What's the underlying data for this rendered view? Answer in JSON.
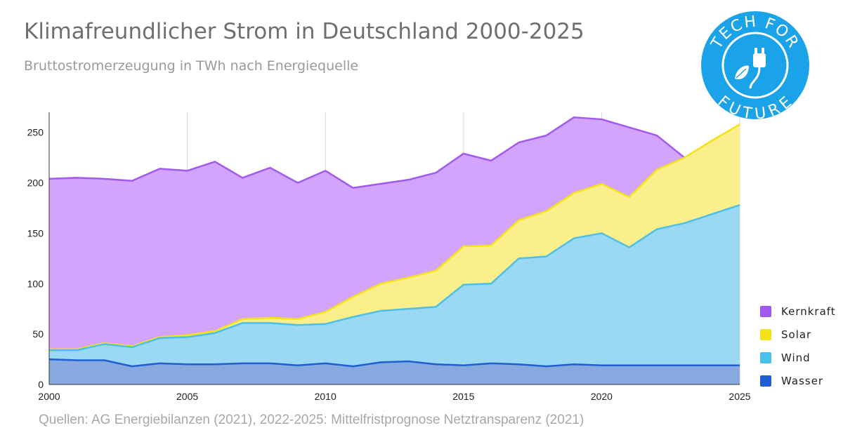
{
  "title": "Klimafreundlicher Strom in Deutschland 2000-2025",
  "subtitle": "Bruttostromerzeugung in TWh nach Energiequelle",
  "source": "Quellen: AG Energiebilanzen (2021), 2022-2025: Mittelfristprognose Netztransparenz (2021)",
  "logo": {
    "icon": "plug-with-leaf-icon",
    "text_top": "TECH FOR",
    "text_bottom": "FUTURE",
    "color": "#1aa3e8"
  },
  "colors": {
    "Kernkraft": {
      "fill": "#d2a4fc",
      "line": "#a259f0"
    },
    "Solar": {
      "fill": "#fbef8c",
      "line": "#f5e11a"
    },
    "Wind": {
      "fill": "#9ad8f4",
      "line": "#4cc0e8"
    },
    "Wasser": {
      "fill": "#88a8e0",
      "line": "#1f5fd0"
    }
  },
  "chart_data": {
    "type": "area",
    "stacked": true,
    "x": [
      2000,
      2001,
      2002,
      2003,
      2004,
      2005,
      2006,
      2007,
      2008,
      2009,
      2010,
      2011,
      2012,
      2013,
      2014,
      2015,
      2016,
      2017,
      2018,
      2019,
      2020,
      2021,
      2022,
      2023,
      2024,
      2025
    ],
    "series": [
      {
        "name": "Wasser",
        "cumulative": [
          25,
          24,
          24,
          18,
          21,
          20,
          20,
          21,
          21,
          19,
          21,
          18,
          22,
          23,
          20,
          19,
          21,
          20,
          18,
          20,
          19,
          19,
          19,
          19,
          19,
          19
        ]
      },
      {
        "name": "Wind",
        "cumulative": [
          34,
          34,
          40,
          37,
          46,
          47,
          51,
          61,
          61,
          59,
          60,
          67,
          73,
          75,
          77,
          99,
          100,
          125,
          127,
          145,
          150,
          136,
          154,
          160,
          169,
          178
        ]
      },
      {
        "name": "Solar",
        "cumulative": [
          35,
          35,
          41,
          38,
          47,
          49,
          53,
          65,
          66,
          65,
          72,
          87,
          100,
          106,
          113,
          137,
          138,
          163,
          172,
          190,
          199,
          186,
          213,
          225,
          242,
          258
        ]
      },
      {
        "name": "Kernkraft",
        "cumulative": [
          204,
          205,
          204,
          202,
          214,
          212,
          221,
          205,
          215,
          200,
          212,
          195,
          199,
          203,
          210,
          229,
          222,
          240,
          247,
          265,
          263,
          255,
          247,
          225,
          null,
          null
        ]
      }
    ],
    "xticks": [
      2000,
      2005,
      2010,
      2015,
      2020,
      2025
    ],
    "yticks": [
      0,
      50,
      100,
      150,
      200,
      250
    ],
    "xlim": [
      2000,
      2025
    ],
    "ylim": [
      0,
      270
    ],
    "grid": "vertical",
    "legend": [
      "Kernkraft",
      "Solar",
      "Wind",
      "Wasser"
    ],
    "legend_position": "right"
  }
}
